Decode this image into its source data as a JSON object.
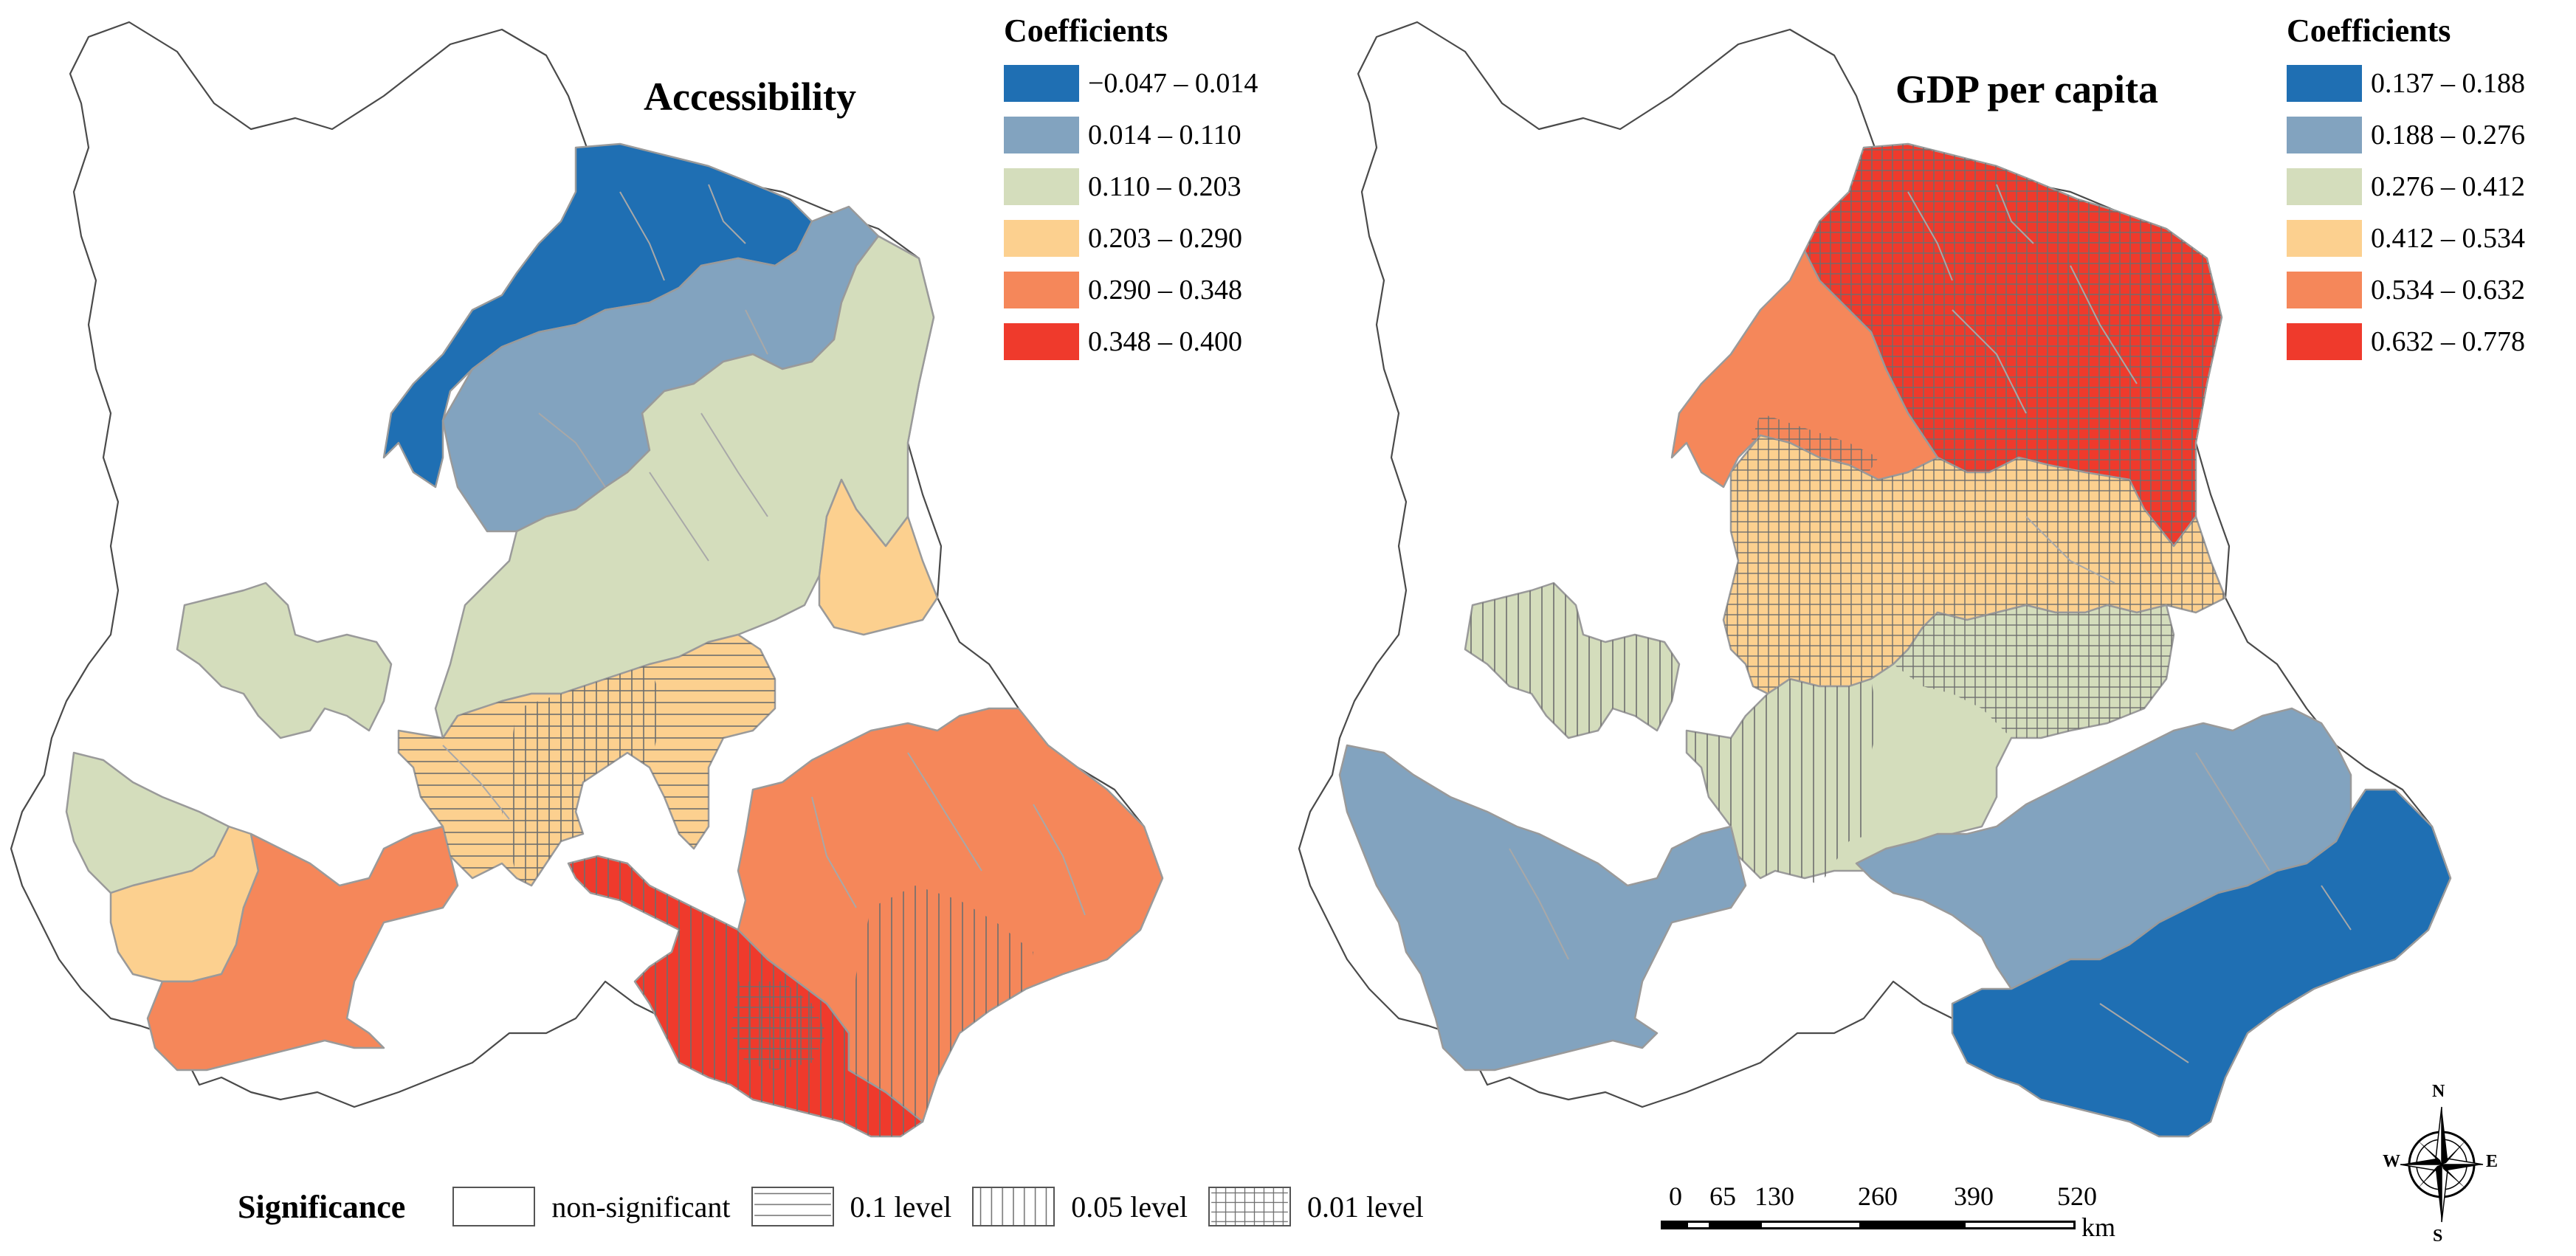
{
  "maps": [
    {
      "title": "Accessibility",
      "legend_heading": "Coefficients",
      "classes": [
        {
          "label": "−0.047 – 0.014",
          "color": "#1f6fb3"
        },
        {
          "label": "0.014 – 0.110",
          "color": "#82a3bf"
        },
        {
          "label": "0.110 – 0.203",
          "color": "#d4ddbc"
        },
        {
          "label": "0.203 – 0.290",
          "color": "#fcd08f"
        },
        {
          "label": "0.290 – 0.348",
          "color": "#f5875a"
        },
        {
          "label": "0.348 – 0.400",
          "color": "#ef3a2c"
        }
      ]
    },
    {
      "title": "GDP per capita",
      "legend_heading": "Coefficients",
      "classes": [
        {
          "label": "0.137 – 0.188",
          "color": "#1f6fb3"
        },
        {
          "label": "0.188 – 0.276",
          "color": "#82a3bf"
        },
        {
          "label": "0.276 – 0.412",
          "color": "#d4ddbc"
        },
        {
          "label": "0.412 – 0.534",
          "color": "#fcd08f"
        },
        {
          "label": "0.534 – 0.632",
          "color": "#f5875a"
        },
        {
          "label": "0.632 – 0.778",
          "color": "#ef3a2c"
        }
      ]
    }
  ],
  "significance": {
    "title": "Significance",
    "levels": [
      {
        "label": "non-significant",
        "pattern": "none"
      },
      {
        "label": "0.1 level",
        "pattern": "horizontal"
      },
      {
        "label": "0.05 level",
        "pattern": "vertical"
      },
      {
        "label": "0.01 level",
        "pattern": "grid"
      }
    ]
  },
  "scale_bar": {
    "ticks": [
      "0",
      "65",
      "130",
      "260",
      "390",
      "520"
    ],
    "unit": "km"
  },
  "compass": {
    "north": "N",
    "south": "S",
    "east": "E",
    "west": "W"
  }
}
